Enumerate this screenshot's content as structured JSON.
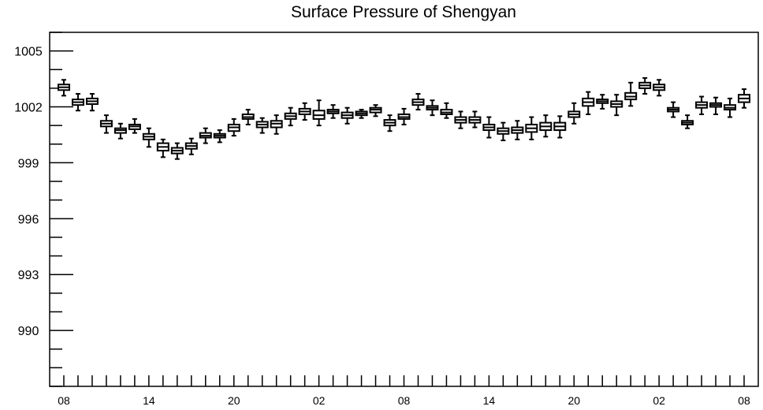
{
  "chart_data": {
    "type": "boxplot",
    "title": "Surface Pressure of Shengyan",
    "xlabel": "",
    "ylabel": "",
    "ylim": [
      987,
      1006
    ],
    "y_ticks": [
      "1005",
      "1002",
      "999",
      "996",
      "993",
      "990"
    ],
    "y_tick_values": [
      1005,
      1002,
      999,
      996,
      993,
      990
    ],
    "x_ticks": [
      "08",
      "14",
      "20",
      "02",
      "08",
      "14",
      "20",
      "02",
      "08"
    ],
    "x_tick_steps": [
      0,
      6,
      12,
      18,
      24,
      30,
      36,
      42,
      48
    ],
    "step_hours": 1,
    "x_range": [
      -1,
      49
    ],
    "grid": false,
    "legend": "none",
    "series": [
      {
        "boxes": [
          {
            "step": 0,
            "min": 1002.6,
            "q1": 1002.9,
            "median": 1003.05,
            "q3": 1003.2,
            "max": 1003.45
          },
          {
            "step": 1,
            "min": 1001.8,
            "q1": 1002.1,
            "median": 1002.25,
            "q3": 1002.4,
            "max": 1002.7
          },
          {
            "step": 2,
            "min": 1001.8,
            "q1": 1002.15,
            "median": 1002.3,
            "q3": 1002.45,
            "max": 1002.7
          },
          {
            "step": 3,
            "min": 1000.6,
            "q1": 1000.95,
            "median": 1001.1,
            "q3": 1001.25,
            "max": 1001.55
          },
          {
            "step": 4,
            "min": 1000.3,
            "q1": 1000.6,
            "median": 1000.75,
            "q3": 1000.85,
            "max": 1001.1
          },
          {
            "step": 5,
            "min": 1000.6,
            "q1": 1000.8,
            "median": 1000.95,
            "q3": 1001.05,
            "max": 1001.35
          },
          {
            "step": 6,
            "min": 999.85,
            "q1": 1000.25,
            "median": 1000.4,
            "q3": 1000.55,
            "max": 1000.85
          },
          {
            "step": 7,
            "min": 999.3,
            "q1": 999.65,
            "median": 999.85,
            "q3": 1000.05,
            "max": 1000.25
          },
          {
            "step": 8,
            "min": 999.2,
            "q1": 999.5,
            "median": 999.65,
            "q3": 999.8,
            "max": 1000.05
          },
          {
            "step": 9,
            "min": 999.45,
            "q1": 999.75,
            "median": 999.9,
            "q3": 1000.05,
            "max": 1000.3
          },
          {
            "step": 10,
            "min": 1000.05,
            "q1": 1000.35,
            "median": 1000.45,
            "q3": 1000.6,
            "max": 1000.85
          },
          {
            "step": 11,
            "min": 1000.1,
            "q1": 1000.35,
            "median": 1000.45,
            "q3": 1000.55,
            "max": 1000.75
          },
          {
            "step": 12,
            "min": 1000.45,
            "q1": 1000.7,
            "median": 1000.9,
            "q3": 1001.05,
            "max": 1001.35
          },
          {
            "step": 13,
            "min": 1001.05,
            "q1": 1001.35,
            "median": 1001.45,
            "q3": 1001.6,
            "max": 1001.85
          },
          {
            "step": 14,
            "min": 1000.6,
            "q1": 1000.9,
            "median": 1001.05,
            "q3": 1001.2,
            "max": 1001.4
          },
          {
            "step": 15,
            "min": 1000.55,
            "q1": 1000.9,
            "median": 1001.1,
            "q3": 1001.25,
            "max": 1001.55
          },
          {
            "step": 16,
            "min": 1001.0,
            "q1": 1001.35,
            "median": 1001.5,
            "q3": 1001.65,
            "max": 1001.95
          },
          {
            "step": 17,
            "min": 1001.3,
            "q1": 1001.6,
            "median": 1001.75,
            "q3": 1001.9,
            "max": 1002.2
          },
          {
            "step": 18,
            "min": 1001.0,
            "q1": 1001.35,
            "median": 1001.55,
            "q3": 1001.8,
            "max": 1002.35
          },
          {
            "step": 19,
            "min": 1001.4,
            "q1": 1001.65,
            "median": 1001.75,
            "q3": 1001.85,
            "max": 1002.1
          },
          {
            "step": 20,
            "min": 1001.1,
            "q1": 1001.4,
            "median": 1001.55,
            "q3": 1001.7,
            "max": 1001.95
          },
          {
            "step": 21,
            "min": 1001.4,
            "q1": 1001.55,
            "median": 1001.65,
            "q3": 1001.75,
            "max": 1001.85
          },
          {
            "step": 22,
            "min": 1001.5,
            "q1": 1001.7,
            "median": 1001.85,
            "q3": 1001.95,
            "max": 1002.1
          },
          {
            "step": 23,
            "min": 1000.7,
            "q1": 1001.0,
            "median": 1001.15,
            "q3": 1001.3,
            "max": 1001.55
          },
          {
            "step": 24,
            "min": 1001.05,
            "q1": 1001.35,
            "median": 1001.45,
            "q3": 1001.6,
            "max": 1001.9
          },
          {
            "step": 25,
            "min": 1001.85,
            "q1": 1002.1,
            "median": 1002.25,
            "q3": 1002.4,
            "max": 1002.7
          },
          {
            "step": 26,
            "min": 1001.55,
            "q1": 1001.85,
            "median": 1001.95,
            "q3": 1002.05,
            "max": 1002.35
          },
          {
            "step": 27,
            "min": 1001.4,
            "q1": 1001.6,
            "median": 1001.7,
            "q3": 1001.85,
            "max": 1002.2
          },
          {
            "step": 28,
            "min": 1000.85,
            "q1": 1001.15,
            "median": 1001.3,
            "q3": 1001.45,
            "max": 1001.75
          },
          {
            "step": 29,
            "min": 1000.9,
            "q1": 1001.15,
            "median": 1001.3,
            "q3": 1001.45,
            "max": 1001.75
          },
          {
            "step": 30,
            "min": 1000.35,
            "q1": 1000.75,
            "median": 1000.9,
            "q3": 1001.05,
            "max": 1001.45
          },
          {
            "step": 31,
            "min": 1000.2,
            "q1": 1000.55,
            "median": 1000.7,
            "q3": 1000.85,
            "max": 1001.15
          },
          {
            "step": 32,
            "min": 1000.25,
            "q1": 1000.6,
            "median": 1000.75,
            "q3": 1000.9,
            "max": 1001.25
          },
          {
            "step": 33,
            "min": 1000.25,
            "q1": 1000.65,
            "median": 1000.85,
            "q3": 1001.05,
            "max": 1001.45
          },
          {
            "step": 34,
            "min": 1000.4,
            "q1": 1000.75,
            "median": 1000.95,
            "q3": 1001.15,
            "max": 1001.55
          },
          {
            "step": 35,
            "min": 1000.35,
            "q1": 1000.75,
            "median": 1000.95,
            "q3": 1001.15,
            "max": 1001.5
          },
          {
            "step": 36,
            "min": 1001.1,
            "q1": 1001.45,
            "median": 1001.6,
            "q3": 1001.75,
            "max": 1002.2
          },
          {
            "step": 37,
            "min": 1001.6,
            "q1": 1002.05,
            "median": 1002.25,
            "q3": 1002.45,
            "max": 1002.8
          },
          {
            "step": 38,
            "min": 1001.9,
            "q1": 1002.2,
            "median": 1002.3,
            "q3": 1002.4,
            "max": 1002.65
          },
          {
            "step": 39,
            "min": 1001.55,
            "q1": 1002.0,
            "median": 1002.15,
            "q3": 1002.3,
            "max": 1002.65
          },
          {
            "step": 40,
            "min": 1002.05,
            "q1": 1002.4,
            "median": 1002.55,
            "q3": 1002.75,
            "max": 1003.3
          },
          {
            "step": 41,
            "min": 1002.7,
            "q1": 1003.0,
            "median": 1003.15,
            "q3": 1003.3,
            "max": 1003.55
          },
          {
            "step": 42,
            "min": 1002.6,
            "q1": 1002.9,
            "median": 1003.05,
            "q3": 1003.2,
            "max": 1003.45
          },
          {
            "step": 43,
            "min": 1001.45,
            "q1": 1001.75,
            "median": 1001.85,
            "q3": 1001.95,
            "max": 1002.25
          },
          {
            "step": 44,
            "min": 1000.85,
            "q1": 1001.05,
            "median": 1001.15,
            "q3": 1001.25,
            "max": 1001.55
          },
          {
            "step": 45,
            "min": 1001.6,
            "q1": 1001.95,
            "median": 1002.1,
            "q3": 1002.25,
            "max": 1002.55
          },
          {
            "step": 46,
            "min": 1001.6,
            "q1": 1002.0,
            "median": 1002.1,
            "q3": 1002.2,
            "max": 1002.5
          },
          {
            "step": 47,
            "min": 1001.45,
            "q1": 1001.85,
            "median": 1001.95,
            "q3": 1002.1,
            "max": 1002.45
          },
          {
            "step": 48,
            "min": 1001.95,
            "q1": 1002.25,
            "median": 1002.45,
            "q3": 1002.65,
            "max": 1002.95
          }
        ]
      }
    ],
    "colors": {
      "box_fill": "#ffffff",
      "stroke": "#000000"
    }
  }
}
